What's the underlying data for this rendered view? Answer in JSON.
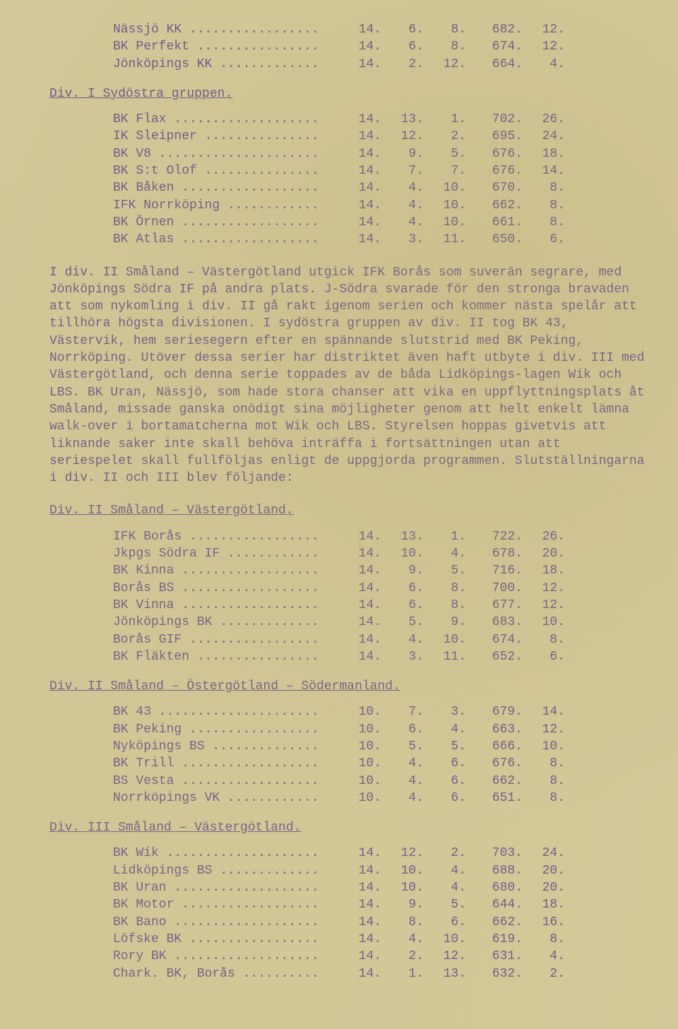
{
  "top_rows": [
    {
      "name": "Nässjö KK",
      "g": "14.",
      "w": "6.",
      "l": "8.",
      "pf": "682.",
      "pts": "12."
    },
    {
      "name": "BK Perfekt",
      "g": "14.",
      "w": "6.",
      "l": "8.",
      "pf": "674.",
      "pts": "12."
    },
    {
      "name": "Jönköpings KK",
      "g": "14.",
      "w": "2.",
      "l": "12.",
      "pf": "664.",
      "pts": "4."
    }
  ],
  "sec1": {
    "heading": "Div. I Sydöstra gruppen.",
    "rows": [
      {
        "name": "BK Flax",
        "g": "14.",
        "w": "13.",
        "l": "1.",
        "pf": "702.",
        "pts": "26."
      },
      {
        "name": "IK Sleipner",
        "g": "14.",
        "w": "12.",
        "l": "2.",
        "pf": "695.",
        "pts": "24."
      },
      {
        "name": "BK V8",
        "g": "14.",
        "w": "9.",
        "l": "5.",
        "pf": "676.",
        "pts": "18."
      },
      {
        "name": "BK S:t Olof",
        "g": "14.",
        "w": "7.",
        "l": "7.",
        "pf": "676.",
        "pts": "14."
      },
      {
        "name": "BK Båken",
        "g": "14.",
        "w": "4.",
        "l": "10.",
        "pf": "670.",
        "pts": "8."
      },
      {
        "name": "IFK Norrköping",
        "g": "14.",
        "w": "4.",
        "l": "10.",
        "pf": "662.",
        "pts": "8."
      },
      {
        "name": "BK Örnen",
        "g": "14.",
        "w": "4.",
        "l": "10.",
        "pf": "661.",
        "pts": "8."
      },
      {
        "name": "BK Atlas",
        "g": "14.",
        "w": "3.",
        "l": "11.",
        "pf": "650.",
        "pts": "6."
      }
    ]
  },
  "paragraph": "I div. II Småland – Västergötland utgick IFK Borås som suverän segrare, med Jönköpings Södra IF på andra plats. J-Södra svarade för den stronga bravaden att som nykomling i div. II gå rakt igenom serien och kommer nästa spelår att tillhöra högsta divisionen. I sydöstra gruppen av div. II tog BK 43, Västervik, hem seriesegern efter en spännande slutstrid med BK Peking, Norrköping. Utöver dessa serier har distriktet även haft utbyte i div. III med Västergötland, och denna serie toppades av de båda Lidköpings-lagen Wik och LBS. BK Uran, Nässjö, som hade stora chanser att vika en uppflyttningsplats åt Småland, missade ganska onödigt sina möjligheter genom att helt enkelt lämna walk-over i bortamatcherna mot Wik och LBS. Styrelsen hoppas givetvis att liknande saker inte skall behöva inträffa i fortsättningen utan att seriespelet skall fullföljas enligt de uppgjorda programmen. Slutställningarna i div. II och III blev följande:",
  "sec2": {
    "heading": "Div. II Småland – Västergötland.",
    "rows": [
      {
        "name": "IFK Borås",
        "g": "14.",
        "w": "13.",
        "l": "1.",
        "pf": "722.",
        "pts": "26."
      },
      {
        "name": "Jkpgs Södra IF",
        "g": "14.",
        "w": "10.",
        "l": "4.",
        "pf": "678.",
        "pts": "20."
      },
      {
        "name": "BK Kinna",
        "g": "14.",
        "w": "9.",
        "l": "5.",
        "pf": "716.",
        "pts": "18."
      },
      {
        "name": "Borås BS",
        "g": "14.",
        "w": "6.",
        "l": "8.",
        "pf": "700.",
        "pts": "12."
      },
      {
        "name": "BK Vinna",
        "g": "14.",
        "w": "6.",
        "l": "8.",
        "pf": "677.",
        "pts": "12."
      },
      {
        "name": "Jönköpings BK",
        "g": "14.",
        "w": "5.",
        "l": "9.",
        "pf": "683.",
        "pts": "10."
      },
      {
        "name": "Borås GIF",
        "g": "14.",
        "w": "4.",
        "l": "10.",
        "pf": "674.",
        "pts": "8."
      },
      {
        "name": "BK Fläkten",
        "g": "14.",
        "w": "3.",
        "l": "11.",
        "pf": "652.",
        "pts": "6."
      }
    ]
  },
  "sec3": {
    "heading": "Div. II Småland – Östergötland – Södermanland.",
    "rows": [
      {
        "name": "BK 43",
        "g": "10.",
        "w": "7.",
        "l": "3.",
        "pf": "679.",
        "pts": "14."
      },
      {
        "name": "BK Peking",
        "g": "10.",
        "w": "6.",
        "l": "4.",
        "pf": "663.",
        "pts": "12."
      },
      {
        "name": "Nyköpings BS",
        "g": "10.",
        "w": "5.",
        "l": "5.",
        "pf": "666.",
        "pts": "10."
      },
      {
        "name": "BK Trill",
        "g": "10.",
        "w": "4.",
        "l": "6.",
        "pf": "676.",
        "pts": "8."
      },
      {
        "name": "BS Vesta",
        "g": "10.",
        "w": "4.",
        "l": "6.",
        "pf": "662.",
        "pts": "8."
      },
      {
        "name": "Norrköpings VK",
        "g": "10.",
        "w": "4.",
        "l": "6.",
        "pf": "651.",
        "pts": "8."
      }
    ]
  },
  "sec4": {
    "heading": "Div. III Småland – Västergötland.",
    "rows": [
      {
        "name": "BK Wik",
        "g": "14.",
        "w": "12.",
        "l": "2.",
        "pf": "703.",
        "pts": "24."
      },
      {
        "name": "Lidköpings BS",
        "g": "14.",
        "w": "10.",
        "l": "4.",
        "pf": "688.",
        "pts": "20."
      },
      {
        "name": "BK Uran",
        "g": "14.",
        "w": "10.",
        "l": "4.",
        "pf": "680.",
        "pts": "20."
      },
      {
        "name": "BK Motor",
        "g": "14.",
        "w": "9.",
        "l": "5.",
        "pf": "644.",
        "pts": "18."
      },
      {
        "name": "BK Bano",
        "g": "14.",
        "w": "8.",
        "l": "6.",
        "pf": "662.",
        "pts": "16."
      },
      {
        "name": "Löfske BK",
        "g": "14.",
        "w": "4.",
        "l": "10.",
        "pf": "619.",
        "pts": "8."
      },
      {
        "name": "Rory BK",
        "g": "14.",
        "w": "2.",
        "l": "12.",
        "pf": "631.",
        "pts": "4."
      },
      {
        "name": "Chark. BK, Borås",
        "g": "14.",
        "w": "1.",
        "l": "13.",
        "pf": "632.",
        "pts": "2."
      }
    ]
  },
  "dot_fill_width": 26,
  "colors": {
    "paper": "#d4c89a",
    "ink": "#6b5a8a"
  },
  "typography": {
    "font_family": "Courier New",
    "font_size_pt": 14
  }
}
